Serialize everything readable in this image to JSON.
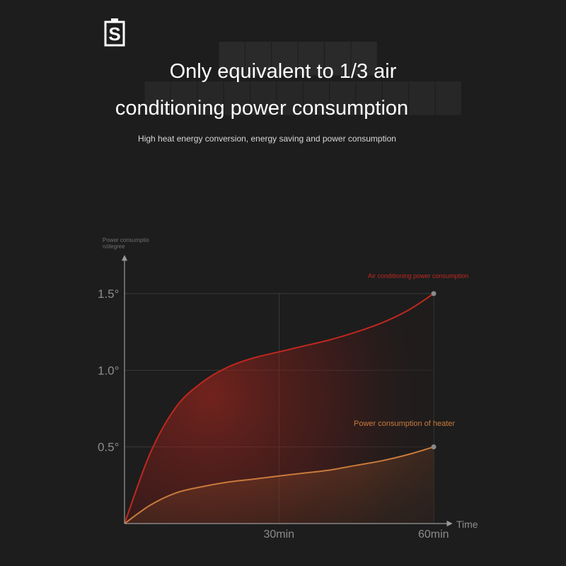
{
  "brand": {
    "logo_icon": "s-logo-icon"
  },
  "header": {
    "title_line1": "Only equivalent to 1/3 air",
    "title_line2": "conditioning power consumption",
    "subtitle": "High heat energy conversion, energy saving and power consumption"
  },
  "chart_data": {
    "type": "area",
    "title": "",
    "ylabel": "Power consumption/degree",
    "xlabel": "Time",
    "x_ticks": [
      "30min",
      "60min"
    ],
    "y_ticks": [
      "0.5°",
      "1.0°",
      "1.5°"
    ],
    "xlim": [
      0,
      60
    ],
    "ylim": [
      0,
      1.5
    ],
    "grid": true,
    "series": [
      {
        "name": "Air conditioning power consumption",
        "color": "#c0281e",
        "x": [
          0,
          5,
          10,
          15,
          20,
          25,
          30,
          35,
          40,
          45,
          50,
          55,
          60
        ],
        "y": [
          0,
          0.46,
          0.76,
          0.92,
          1.02,
          1.08,
          1.12,
          1.16,
          1.2,
          1.25,
          1.31,
          1.39,
          1.5
        ]
      },
      {
        "name": "Power consumption of heater",
        "color": "#c87a3c",
        "x": [
          0,
          5,
          10,
          15,
          20,
          25,
          30,
          35,
          40,
          45,
          50,
          55,
          60
        ],
        "y": [
          0,
          0.12,
          0.2,
          0.24,
          0.27,
          0.29,
          0.31,
          0.33,
          0.35,
          0.38,
          0.41,
          0.45,
          0.5
        ]
      }
    ]
  }
}
